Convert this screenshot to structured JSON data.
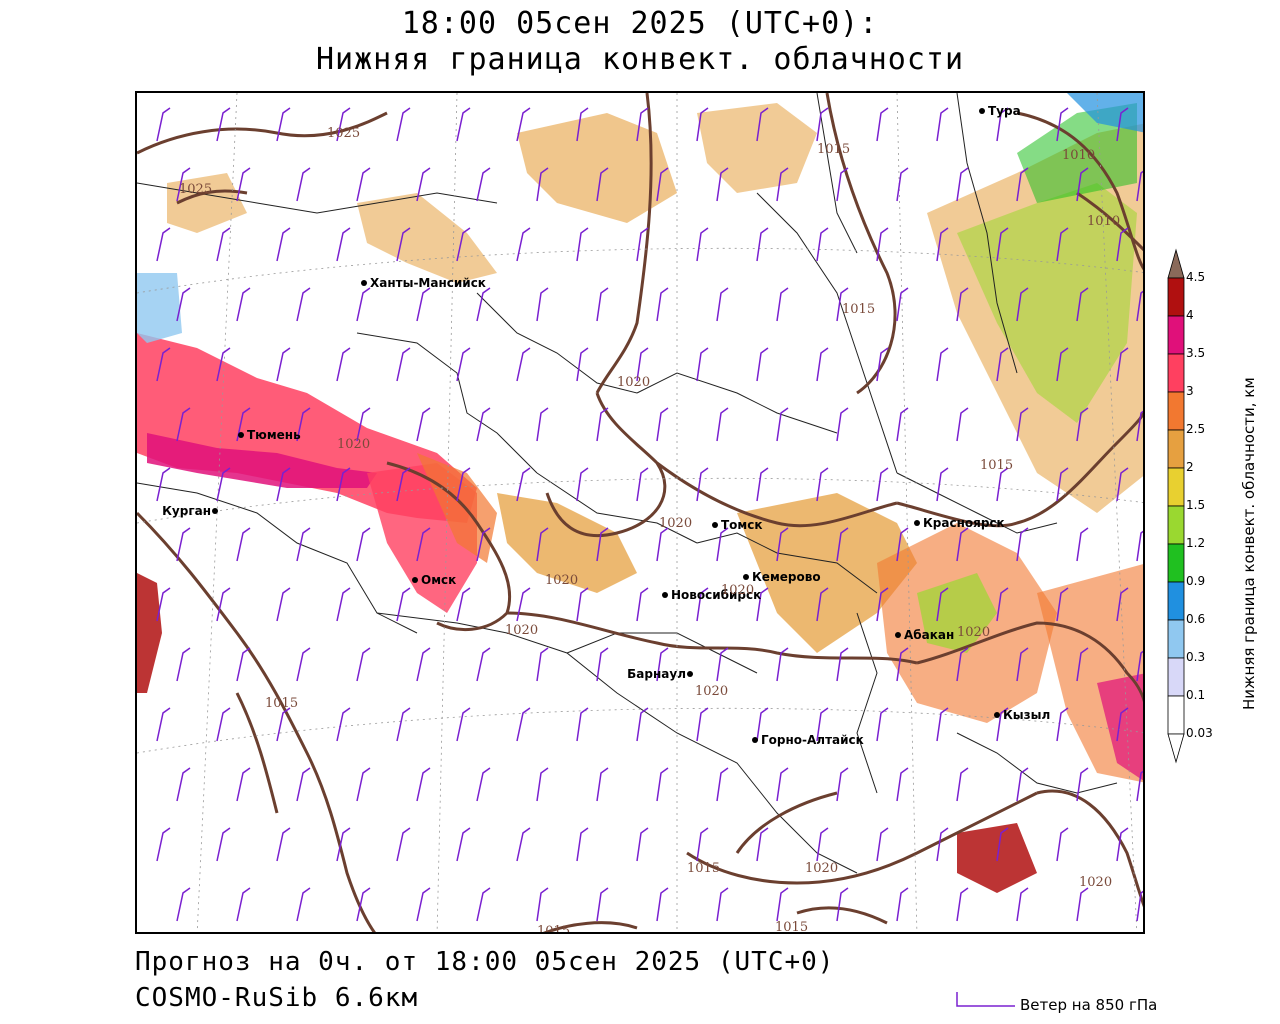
{
  "header": {
    "line1": "18:00 05сен 2025 (UTC+0):",
    "line2": "Нижняя граница конвект. облачности"
  },
  "footer": {
    "forecast": "Прогноз на 0ч. от 18:00 05сен 2025 (UTC+0)",
    "model": "COSMO-RuSib 6.6км",
    "wind_legend": "Ветер на 850 гПа"
  },
  "colorbar": {
    "title": "Нижняя граница конвект. облачности, км",
    "levels": [
      "4.5",
      "4",
      "3.5",
      "3",
      "2.5",
      "2",
      "1.5",
      "1.2",
      "0.9",
      "0.6",
      "0.3",
      "0.1",
      "0.03"
    ],
    "colors": [
      "#8a6a5a",
      "#b01010",
      "#e0107a",
      "#ff4060",
      "#f27830",
      "#e6a040",
      "#e8d030",
      "#9ad830",
      "#20c020",
      "#2090e0",
      "#90c8f0",
      "#d8d8f8",
      "#ffffff"
    ]
  },
  "cities": [
    {
      "name": "Тура"
    },
    {
      "name": "Ханты-Мансийск"
    },
    {
      "name": "Тюмень"
    },
    {
      "name": "Курган"
    },
    {
      "name": "Омск"
    },
    {
      "name": "Новосибирск"
    },
    {
      "name": "Томск"
    },
    {
      "name": "Кемерово"
    },
    {
      "name": "Красноярск"
    },
    {
      "name": "Абакан"
    },
    {
      "name": "Барнаул"
    },
    {
      "name": "Горно-Алтайск"
    },
    {
      "name": "Кызыл"
    }
  ],
  "isobars": [
    {
      "value": "1025"
    },
    {
      "value": "1025"
    },
    {
      "value": "1015"
    },
    {
      "value": "1010"
    },
    {
      "value": "1010"
    },
    {
      "value": "1015"
    },
    {
      "value": "1020"
    },
    {
      "value": "1020"
    },
    {
      "value": "1015"
    },
    {
      "value": "1020"
    },
    {
      "value": "1020"
    },
    {
      "value": "1020"
    },
    {
      "value": "1020"
    },
    {
      "value": "1020"
    },
    {
      "value": "1015"
    },
    {
      "value": "1020"
    },
    {
      "value": "1020"
    },
    {
      "value": "1015"
    },
    {
      "value": "1015"
    },
    {
      "value": "1015"
    },
    {
      "value": "1020"
    }
  ]
}
